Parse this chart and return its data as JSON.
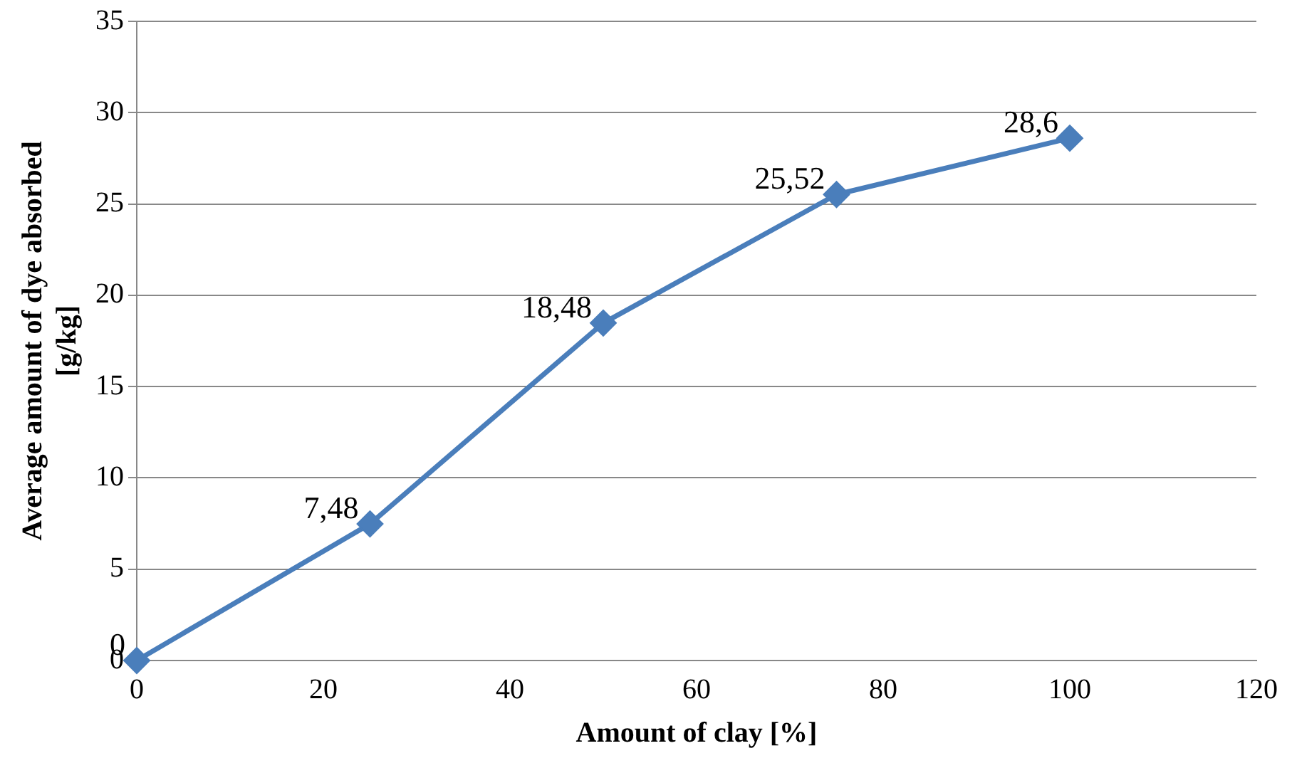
{
  "chart_data": {
    "type": "line",
    "xlabel": "Amount of clay [%]",
    "ylabel": "Average amount of dye absorbed\n[g/kg]",
    "x": [
      0,
      25,
      50,
      75,
      100
    ],
    "series": [
      {
        "color": "#4a7ebb",
        "values": [
          0,
          7.48,
          18.48,
          25.52,
          28.6
        ],
        "value_labels": [
          "0",
          "7,48",
          "18,48",
          "25,52",
          "28,6"
        ]
      }
    ],
    "xlim": [
      0,
      120
    ],
    "xticks": [
      0,
      20,
      40,
      60,
      80,
      100,
      120
    ],
    "ylim": [
      0,
      35
    ],
    "yticks": [
      0,
      5,
      10,
      15,
      20,
      25,
      30,
      35
    ],
    "grid": "y",
    "legend": false,
    "marker": "diamond",
    "line_style": "solid"
  }
}
